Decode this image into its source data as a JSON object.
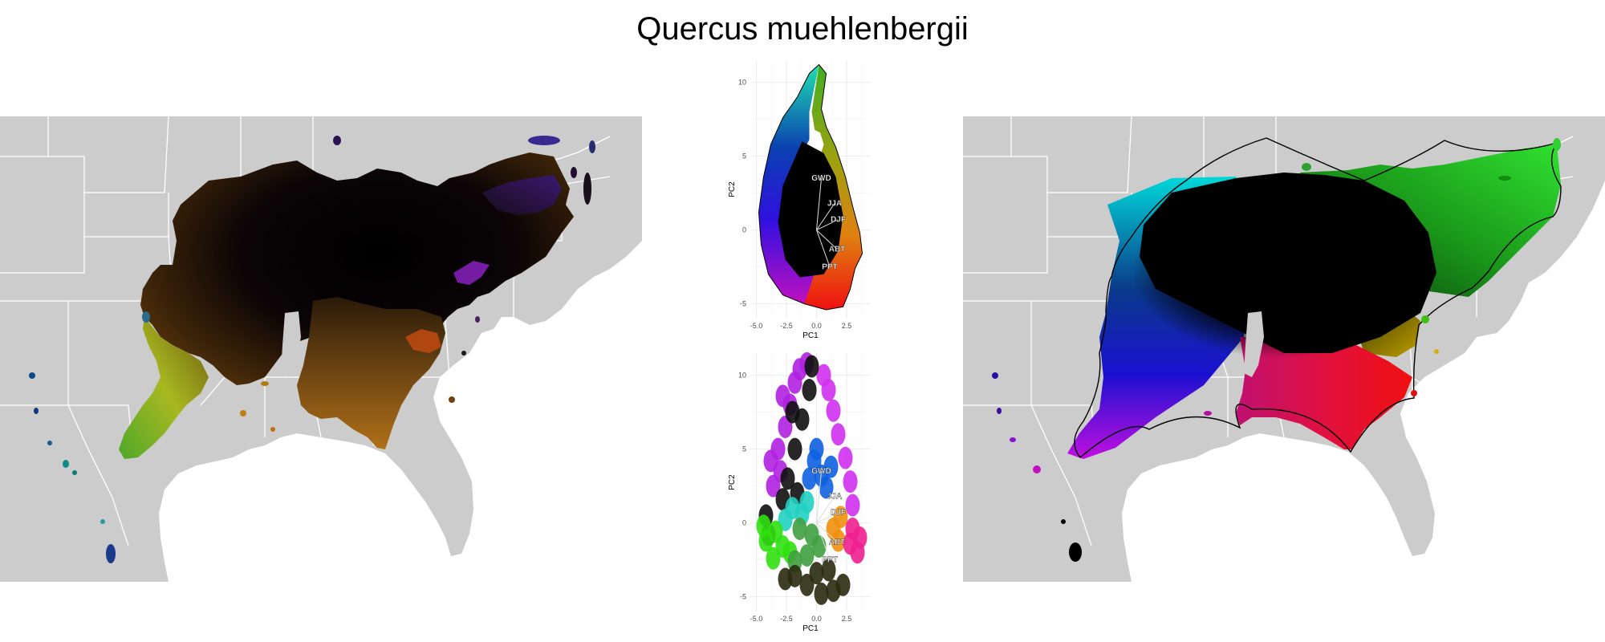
{
  "page": {
    "title": "Quercus muehlenbergii"
  },
  "colors": {
    "land": "#cccccc",
    "borders": "#ffffff",
    "hull_outline": "#000000",
    "panel_grid": "#ebebeb"
  },
  "maps": [
    {
      "id": "left",
      "coloring": "climate-pc-colors (dark core, gold/orange south, green-yellow southwest, violet northeast)"
    },
    {
      "id": "right",
      "coloring": "hull-distance colors (black core, cyan northwest, blue west, magenta southwest, red south, green northeast)"
    }
  ],
  "chart_data": [
    {
      "type": "scatter",
      "panel": "top-biplot",
      "xlabel": "PC1",
      "ylabel": "PC2",
      "xlim": [
        -5.5,
        4.5
      ],
      "ylim": [
        -6,
        11.5
      ],
      "x_ticks": [
        -5.0,
        -2.5,
        0.0,
        2.5
      ],
      "y_ticks": [
        -5,
        0,
        5,
        10
      ],
      "x_tick_labels": [
        "-5.0",
        "-2.5",
        "0.0",
        "2.5"
      ],
      "y_tick_labels": [
        "-5",
        "0",
        "5",
        "10"
      ],
      "grid": true,
      "loadings": [
        {
          "label": "GWD",
          "x": 0.4,
          "y": 3.5
        },
        {
          "label": "JJA",
          "x": 1.5,
          "y": 1.8
        },
        {
          "label": "DJF",
          "x": 1.8,
          "y": 0.7
        },
        {
          "label": "ABT",
          "x": 1.7,
          "y": -1.3
        },
        {
          "label": "PPT",
          "x": 1.1,
          "y": -2.5
        }
      ]
    },
    {
      "type": "scatter",
      "panel": "bottom-biplot",
      "xlabel": "PC1",
      "ylabel": "PC2",
      "xlim": [
        -5.5,
        4.5
      ],
      "ylim": [
        -6,
        11.5
      ],
      "x_ticks": [
        -5.0,
        -2.5,
        0.0,
        2.5
      ],
      "y_ticks": [
        -5,
        0,
        5,
        10
      ],
      "x_tick_labels": [
        "-5.0",
        "-2.5",
        "0.0",
        "2.5"
      ],
      "y_tick_labels": [
        "-5",
        "0",
        "5",
        "10"
      ],
      "grid": true,
      "loadings": [
        {
          "label": "GWD",
          "x": 0.4,
          "y": 3.5
        },
        {
          "label": "JJA",
          "x": 1.5,
          "y": 1.8
        },
        {
          "label": "DJF",
          "x": 1.8,
          "y": 0.7
        },
        {
          "label": "ABT",
          "x": 1.7,
          "y": -1.3
        },
        {
          "label": "PPT",
          "x": 1.1,
          "y": -2.5
        }
      ]
    }
  ]
}
